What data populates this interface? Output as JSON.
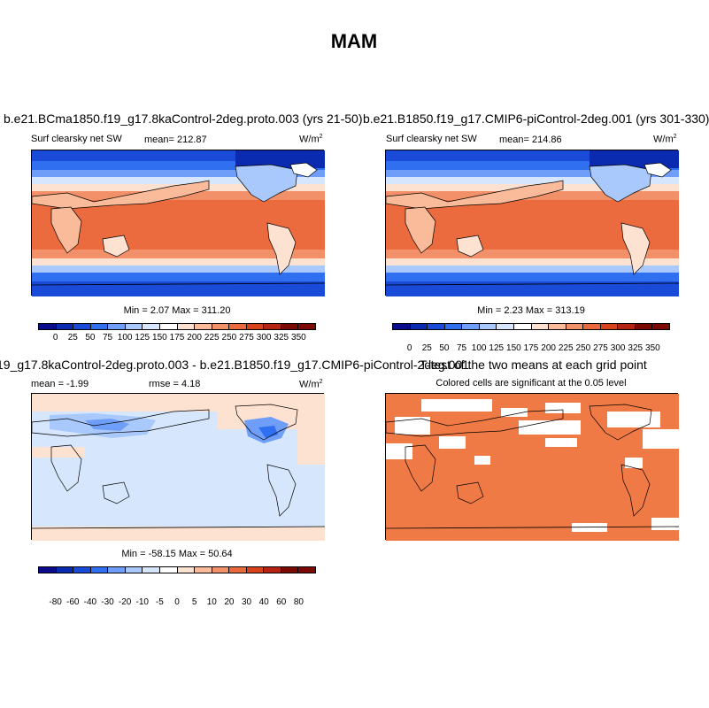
{
  "page": {
    "title": "MAM"
  },
  "panels": {
    "tl": {
      "title": "b.e21.BCma1850.f19_g17.8kaControl-2deg.proto.003 (yrs 21-50)",
      "left": "Surf clearsky net SW",
      "center": "mean= 212.87",
      "units": "W/m",
      "units_exp": "2",
      "stats": "Min =   2.07 Max = 311.20",
      "ticks": [
        "0",
        "25",
        "50",
        "75",
        "100",
        "125",
        "150",
        "175",
        "200",
        "225",
        "250",
        "275",
        "300",
        "325",
        "350"
      ]
    },
    "tr": {
      "title": "b.e21.B1850.f19_g17.CMIP6-piControl-2deg.001 (yrs 301-330)",
      "left": "Surf clearsky net SW",
      "center": "mean= 214.86",
      "units": "W/m",
      "units_exp": "2",
      "stats": "Min =   2.23 Max = 313.19",
      "ticks": [
        "0",
        "25",
        "50",
        "75",
        "100",
        "125",
        "150",
        "175",
        "200",
        "225",
        "250",
        "275",
        "300",
        "325",
        "350"
      ]
    },
    "bl": {
      "title": "19_g17.8kaControl-2deg.proto.003 - b.e21.B1850.f19_g17.CMIP6-piControl-2deg.001",
      "left": "mean =  -1.99",
      "center": "rmse =   4.18",
      "units": "W/m",
      "units_exp": "2",
      "stats": "Min = -58.15 Max =  50.64",
      "ticks": [
        "-80",
        "-60",
        "-40",
        "-30",
        "-20",
        "-10",
        "-5",
        "0",
        "5",
        "10",
        "20",
        "30",
        "40",
        "60",
        "80"
      ]
    },
    "br": {
      "title": "T-test of the two means at each grid point",
      "subtitle": "Colored cells are significant at the 0.05 level"
    }
  },
  "colors": {
    "seq_scale": [
      "#0a0c8c",
      "#0a2ab0",
      "#1a4ad8",
      "#2f6ff0",
      "#6f9ef8",
      "#a9c8fb",
      "#d6e6fc",
      "#ffffff",
      "#fde2d2",
      "#f9bb9a",
      "#f29069",
      "#ea6a3e",
      "#d8421c",
      "#b42410",
      "#7c0a04"
    ],
    "t_test_fill": "#f07a45"
  }
}
